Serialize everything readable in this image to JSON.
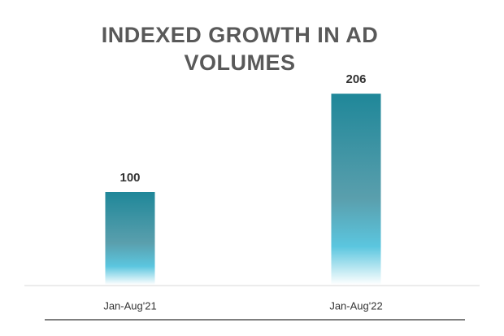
{
  "chart_data": {
    "type": "bar",
    "title": "INDEXED GROWTH IN AD VOLUMES",
    "categories": [
      "Jan-Aug'21",
      "Jan-Aug'22"
    ],
    "values": [
      100,
      206
    ],
    "color": "#1f8799"
  }
}
